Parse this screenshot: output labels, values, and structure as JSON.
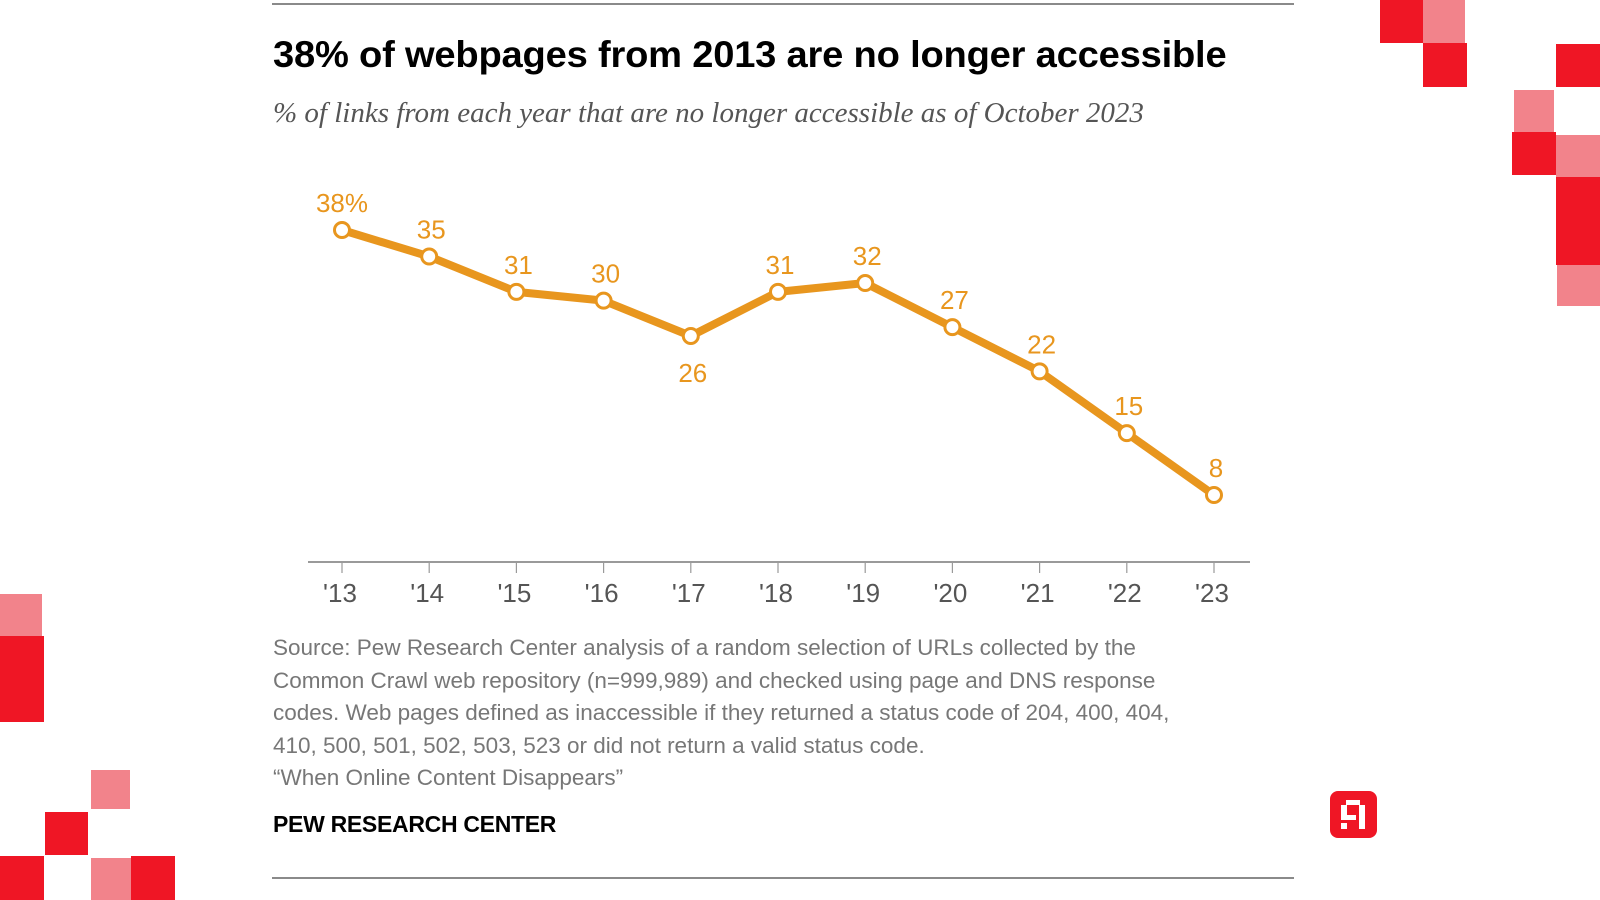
{
  "header": {
    "title": "38% of webpages from 2013 are no longer accessible",
    "subtitle": "% of links from each year that are no longer accessible as of October 2023"
  },
  "chart_data": {
    "type": "line",
    "title": "38% of webpages from 2013 are no longer accessible",
    "subtitle": "% of links from each year that are no longer accessible as of October 2023",
    "xlabel": "",
    "ylabel": "",
    "categories": [
      "'13",
      "'14",
      "'15",
      "'16",
      "'17",
      "'18",
      "'19",
      "'20",
      "'21",
      "'22",
      "'23"
    ],
    "series": [
      {
        "name": "% of links no longer accessible",
        "color": "#e8961e",
        "values": [
          38,
          35,
          31,
          30,
          26,
          31,
          32,
          27,
          22,
          15,
          8
        ],
        "labels": [
          "38%",
          "35",
          "31",
          "30",
          "26",
          "31",
          "32",
          "27",
          "22",
          "15",
          "8"
        ],
        "label_positions": [
          "above",
          "above",
          "above",
          "above",
          "below",
          "above",
          "above",
          "above",
          "above",
          "above",
          "above"
        ]
      }
    ],
    "ylim": [
      8,
      38
    ],
    "grid": false,
    "legend": "none"
  },
  "footer": {
    "source_lines": [
      "Source: Pew Research Center analysis of a random selection of URLs collected by the",
      "Common Crawl web repository (n=999,989) and checked using page and DNS response",
      "codes. Web pages defined as inaccessible if they returned a status code of 204, 400, 404,",
      "410, 500, 501, 502, 503, 523 or did not return a valid status code.",
      "“When Online Content Disappears”"
    ],
    "brand": "PEW RESEARCH CENTER"
  },
  "colors": {
    "line": "#e8961e",
    "accent_red": "#ef1625",
    "accent_pink": "#f2838b"
  },
  "icons": {
    "logo": "red-square-logo-icon"
  }
}
